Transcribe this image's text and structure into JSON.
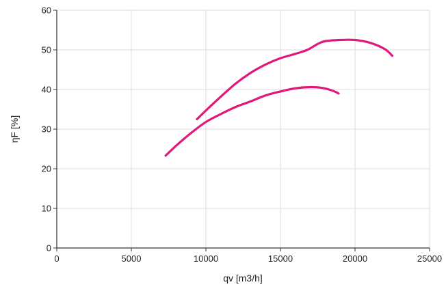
{
  "chart_data": {
    "type": "line",
    "title": "",
    "xlabel": "qv [m3/h]",
    "ylabel": "ηF [%]",
    "xlim": [
      0,
      25000
    ],
    "ylim": [
      0,
      60
    ],
    "x_ticks": [
      0,
      5000,
      10000,
      15000,
      20000,
      25000
    ],
    "y_ticks": [
      0,
      10,
      20,
      30,
      40,
      50,
      60
    ],
    "grid": true,
    "legend": "none",
    "series_color": "#e0187a",
    "series": [
      {
        "points": [
          [
            9400,
            32.5
          ],
          [
            10000,
            34.7
          ],
          [
            11000,
            38.2
          ],
          [
            12000,
            41.5
          ],
          [
            13000,
            44.2
          ],
          [
            14000,
            46.3
          ],
          [
            15000,
            47.9
          ],
          [
            16000,
            49.0
          ],
          [
            16800,
            50.0
          ],
          [
            17500,
            51.5
          ],
          [
            18000,
            52.2
          ],
          [
            19000,
            52.5
          ],
          [
            20000,
            52.5
          ],
          [
            21000,
            51.8
          ],
          [
            22000,
            50.2
          ],
          [
            22500,
            48.5
          ]
        ]
      },
      {
        "points": [
          [
            7300,
            23.3
          ],
          [
            8000,
            25.8
          ],
          [
            9000,
            29.0
          ],
          [
            10000,
            31.8
          ],
          [
            11000,
            33.8
          ],
          [
            12000,
            35.6
          ],
          [
            13000,
            37.0
          ],
          [
            14000,
            38.5
          ],
          [
            15000,
            39.5
          ],
          [
            16000,
            40.3
          ],
          [
            17000,
            40.6
          ],
          [
            17800,
            40.4
          ],
          [
            18500,
            39.7
          ],
          [
            18900,
            39.0
          ]
        ]
      }
    ]
  }
}
